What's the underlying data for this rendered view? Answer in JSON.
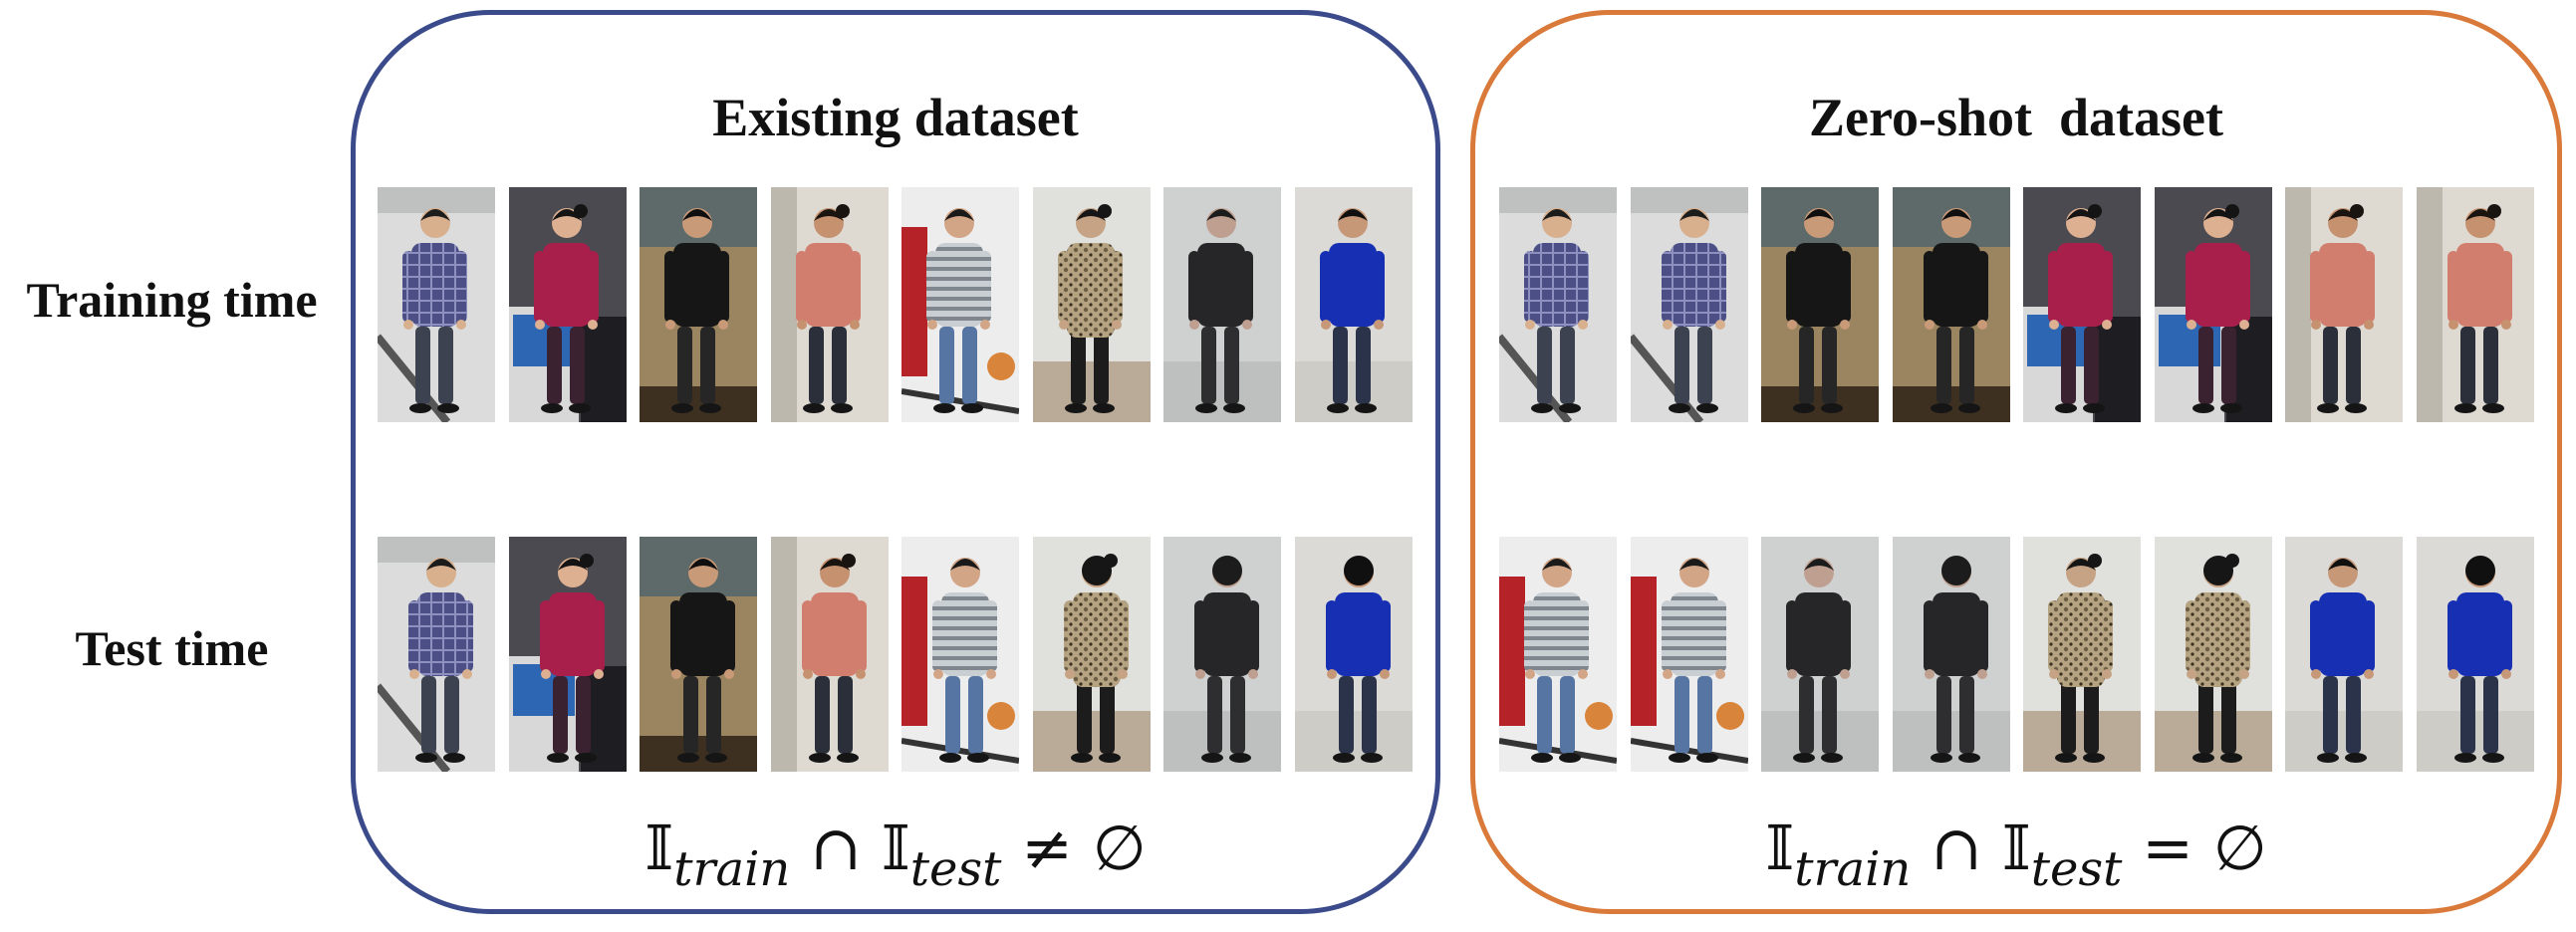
{
  "row_labels": {
    "train": "Training time",
    "test": "Test time"
  },
  "panels": {
    "existing": {
      "title": "Existing dataset",
      "border_color": "#3a4a8a",
      "formula": {
        "set1": "𝕀",
        "sub1": "train",
        "cap": "∩",
        "set2": "𝕀",
        "sub2": "test",
        "rel": "≠",
        "empty": "∅"
      },
      "train_people": [
        {
          "identity": "plaid-man",
          "variant": 1
        },
        {
          "identity": "pink-woman",
          "variant": 1
        },
        {
          "identity": "black-man",
          "variant": 1
        },
        {
          "identity": "salmon-woman",
          "variant": 1
        },
        {
          "identity": "striped-man",
          "variant": 1
        },
        {
          "identity": "leopard-woman",
          "variant": 1
        },
        {
          "identity": "dark-man",
          "variant": 1
        },
        {
          "identity": "blue-man",
          "variant": 1
        }
      ],
      "test_people": [
        {
          "identity": "plaid-man",
          "variant": 2
        },
        {
          "identity": "pink-woman",
          "variant": 2
        },
        {
          "identity": "black-man",
          "variant": 2
        },
        {
          "identity": "salmon-woman",
          "variant": 2
        },
        {
          "identity": "striped-man",
          "variant": 2
        },
        {
          "identity": "leopard-woman",
          "variant": 2
        },
        {
          "identity": "dark-man",
          "variant": 2
        },
        {
          "identity": "blue-man",
          "variant": 2
        }
      ]
    },
    "zeroshot": {
      "title": "Zero-shot  dataset",
      "border_color": "#d9793a",
      "formula": {
        "set1": "𝕀",
        "sub1": "train",
        "cap": "∩",
        "set2": "𝕀",
        "sub2": "test",
        "rel": "=",
        "empty": "∅"
      },
      "train_people": [
        {
          "identity": "plaid-man",
          "variant": 1
        },
        {
          "identity": "plaid-man",
          "variant": 2
        },
        {
          "identity": "black-man",
          "variant": 1
        },
        {
          "identity": "black-man",
          "variant": 2
        },
        {
          "identity": "pink-woman",
          "variant": 1
        },
        {
          "identity": "pink-woman",
          "variant": 2
        },
        {
          "identity": "salmon-woman",
          "variant": 1
        },
        {
          "identity": "salmon-woman",
          "variant": 2
        }
      ],
      "test_people": [
        {
          "identity": "striped-man",
          "variant": 1
        },
        {
          "identity": "striped-man",
          "variant": 2
        },
        {
          "identity": "dark-man",
          "variant": 1
        },
        {
          "identity": "dark-man",
          "variant": 2
        },
        {
          "identity": "leopard-woman",
          "variant": 1
        },
        {
          "identity": "leopard-woman",
          "variant": 2
        },
        {
          "identity": "blue-man",
          "variant": 1
        },
        {
          "identity": "blue-man",
          "variant": 2
        }
      ]
    }
  },
  "identities": {
    "plaid-man": {
      "top": "#4b4f86",
      "accent": "#8d8fbf",
      "pants": "#3c4250",
      "skin": "#d8b08e",
      "hair": "#1c1c1c",
      "bg": "#dcdcdc",
      "fg": "#555555",
      "pattern": "plaid"
    },
    "pink-woman": {
      "top": "#a81f4c",
      "accent": "#d7457a",
      "pants": "#3a2230",
      "skin": "#deb092",
      "hair": "#141414",
      "bg": "#4a4a50",
      "fg": "#2d66b3",
      "pattern": "plain"
    },
    "black-man": {
      "top": "#161616",
      "accent": "#3a3a3a",
      "pants": "#262626",
      "skin": "#c89a78",
      "hair": "#0f0f0f",
      "bg": "#9a8560",
      "fg": "#3d3020",
      "pattern": "plain"
    },
    "salmon-woman": {
      "top": "#d17e6e",
      "accent": "#f0a898",
      "pants": "#2a2f3a",
      "skin": "#c6916f",
      "hair": "#1a1410",
      "bg": "#dedad2",
      "fg": "#8a6a44",
      "pattern": "plain"
    },
    "striped-man": {
      "top": "#7f868e",
      "accent": "#c9ced3",
      "pants": "#5675a2",
      "skin": "#d2a586",
      "hair": "#1a1a1a",
      "bg": "#ededed",
      "fg": "#b52328",
      "pattern": "stripe"
    },
    "leopard-woman": {
      "top": "#6c5d44",
      "accent": "#b5a382",
      "pants": "#1c1c1c",
      "skin": "#c6a384",
      "hair": "#161616",
      "bg": "#e0e0dc",
      "fg": "#8a6a44",
      "pattern": "spots"
    },
    "dark-man": {
      "top": "#262628",
      "accent": "#4a4a4c",
      "pants": "#2e2e30",
      "skin": "#bfa090",
      "hair": "#1c1c1c",
      "bg": "#cfd0d0",
      "fg": "#a8aaaa",
      "pattern": "plain"
    },
    "blue-man": {
      "top": "#1730b3",
      "accent": "#3c5ad8",
      "pants": "#2a334a",
      "skin": "#c79878",
      "hair": "#101010",
      "bg": "#dcdad6",
      "fg": "#bdbab3",
      "pattern": "plain"
    }
  }
}
